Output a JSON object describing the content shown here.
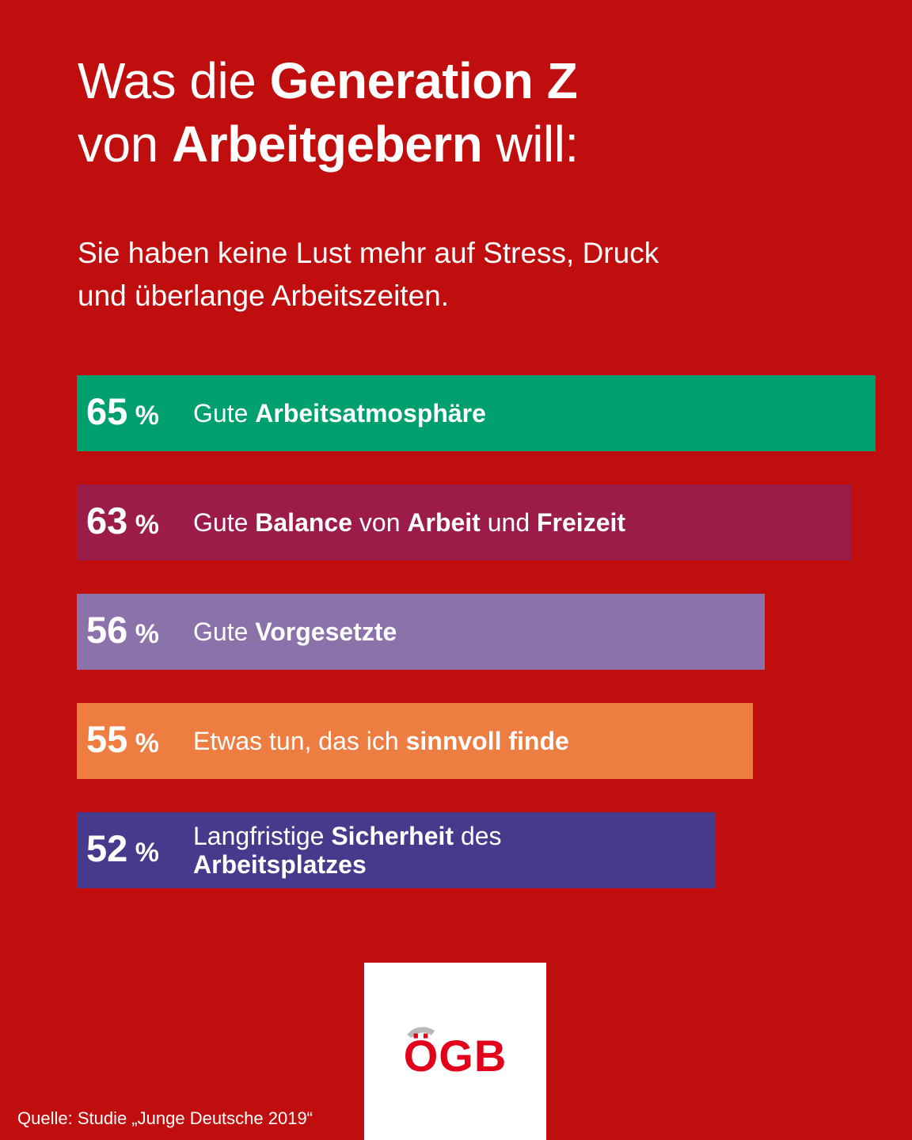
{
  "title": {
    "line1_pre": "Was die ",
    "line1_bold": "Generation Z",
    "line2_pre": "von ",
    "line2_bold": "Arbeitgebern",
    "line2_post": " will:"
  },
  "subtitle": {
    "line1": "Sie haben keine Lust mehr auf Stress, Druck",
    "line2": "und überlange Arbeitszeiten."
  },
  "chart_data": {
    "type": "bar",
    "orientation": "horizontal",
    "unit": "%",
    "categories": [
      "Gute Arbeitsatmosphäre",
      "Gute Balance von Arbeit und Freizeit",
      "Gute Vorgesetzte",
      "Etwas tun, das ich sinnvoll finde",
      "Langfristige Sicherheit des Arbeitsplatzes"
    ],
    "values": [
      65,
      63,
      56,
      55,
      52
    ],
    "label_parts": [
      [
        {
          "t": "Gute ",
          "b": false
        },
        {
          "t": "Arbeitsatmosphäre",
          "b": true
        }
      ],
      [
        {
          "t": "Gute ",
          "b": false
        },
        {
          "t": "Balance",
          "b": true
        },
        {
          "t": " von ",
          "b": false
        },
        {
          "t": "Arbeit",
          "b": true
        },
        {
          "t": " und ",
          "b": false
        },
        {
          "t": "Freizeit",
          "b": true
        }
      ],
      [
        {
          "t": "Gute ",
          "b": false
        },
        {
          "t": "Vorgesetzte",
          "b": true
        }
      ],
      [
        {
          "t": "Etwas tun, das ich ",
          "b": false
        },
        {
          "t": "sinnvoll finde",
          "b": true
        }
      ],
      [
        {
          "t": "Langfristige ",
          "b": false
        },
        {
          "t": "Sicherheit",
          "b": true
        },
        {
          "t": " des",
          "b": false
        },
        {
          "t": "\n",
          "b": false
        },
        {
          "t": "Arbeitsplatzes",
          "b": true
        }
      ]
    ],
    "colors": [
      "#00a06e",
      "#9b1c48",
      "#8c72aa",
      "#ee7d42",
      "#473a8d"
    ],
    "xlim": [
      0,
      65
    ],
    "grid": false
  },
  "logo": {
    "text": "ÖGB",
    "color": "#e2001a"
  },
  "source": "Quelle: Studie „Junge Deutsche 2019“",
  "colors": {
    "background": "#c00d0d",
    "text": "#ffffff"
  }
}
